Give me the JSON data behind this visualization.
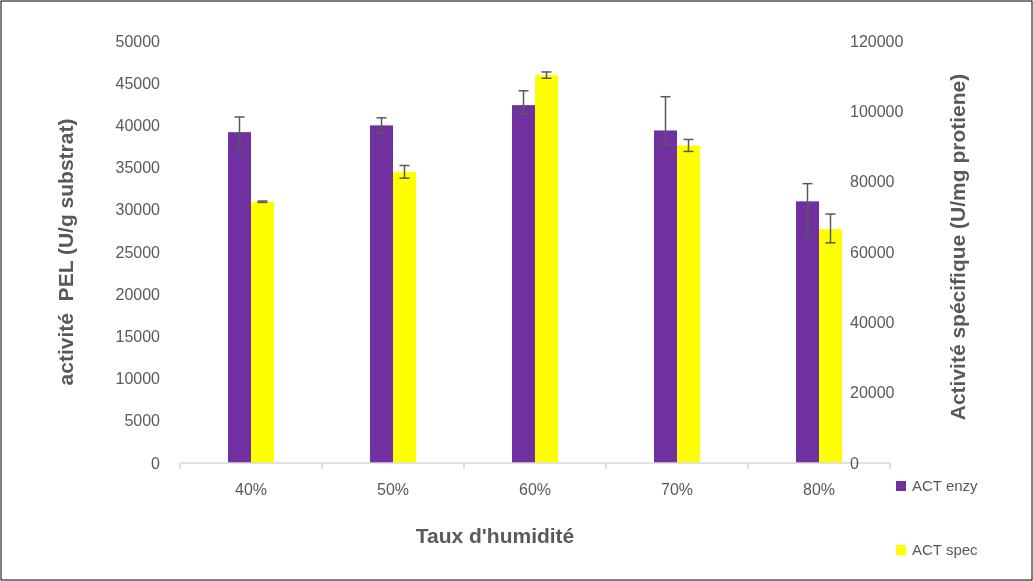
{
  "chart_data": {
    "type": "bar",
    "xlabel": "Taux d'humidité",
    "ylabel": "activité  PEL (U/g substrat)",
    "y2label": "Activité spécifique (U/mg protiene)",
    "categories": [
      "40%",
      "50%",
      "60%",
      "70%",
      "80%"
    ],
    "series": [
      {
        "name": "ACT enzy",
        "color": "#7030a0",
        "values": [
          39200,
          40000,
          42400,
          39400,
          31000
        ],
        "errors": [
          1800,
          900,
          [
            41400,
            44100
          ],
          [
            37700,
            43400
          ],
          [
            26900,
            33100
          ]
        ]
      },
      {
        "name": "ACT spec",
        "color": "#ffff00",
        "axis": "y2",
        "values": [
          74300,
          82800,
          110300,
          90300,
          66500
        ],
        "errors": [
          200,
          1800,
          900,
          1700,
          [
            62600,
            70800
          ]
        ]
      }
    ],
    "ylim": [
      0,
      50000
    ],
    "yticks": [
      0,
      5000,
      10000,
      15000,
      20000,
      25000,
      30000,
      35000,
      40000,
      45000,
      50000
    ],
    "y2lim": [
      0,
      120000
    ],
    "y2ticks": [
      0,
      20000,
      40000,
      60000,
      80000,
      100000,
      120000
    ],
    "grid": false,
    "legend": "bottom right"
  }
}
